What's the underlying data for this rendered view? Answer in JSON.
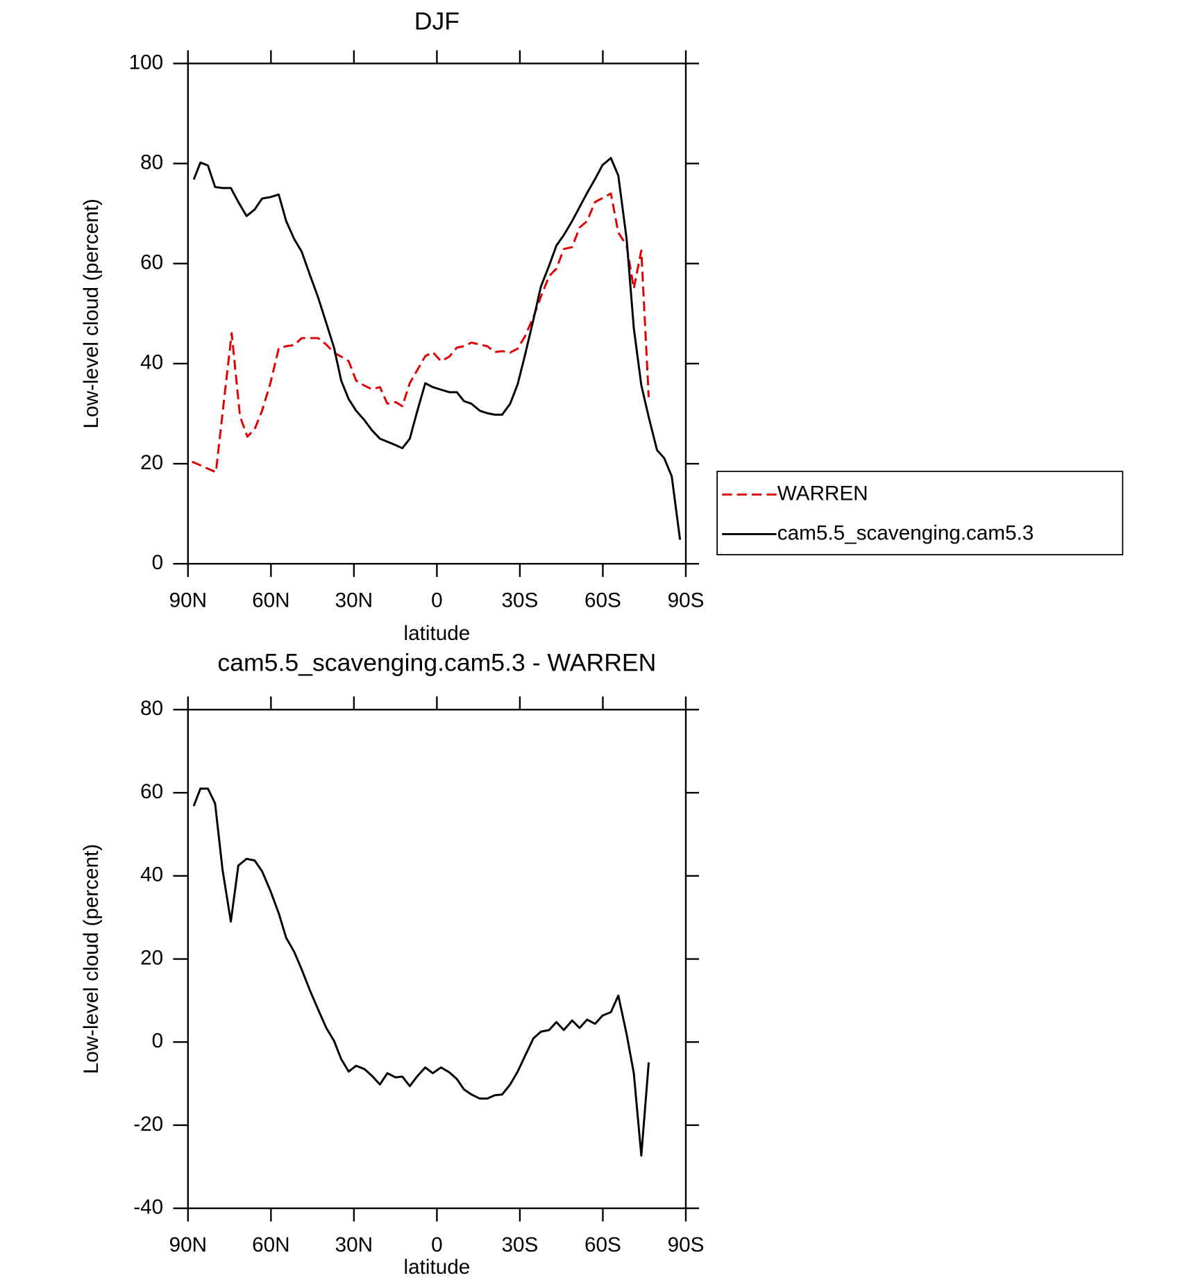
{
  "chart_data": [
    {
      "type": "line",
      "title": "DJF",
      "xlabel": "latitude",
      "ylabel": "Low-level cloud (percent)",
      "xlim": [
        90,
        -90
      ],
      "xticks": [
        {
          "value": 90,
          "label": "90N"
        },
        {
          "value": 60,
          "label": "60N"
        },
        {
          "value": 30,
          "label": "30N"
        },
        0,
        {
          "value": -30,
          "label": "30S"
        },
        {
          "value": -60,
          "label": "60S"
        },
        {
          "value": -90,
          "label": "90S"
        }
      ],
      "ylim": [
        0,
        100
      ],
      "yticks": [
        0,
        20,
        40,
        60,
        80,
        100
      ],
      "legend": "right",
      "series": [
        {
          "name": "WARREN",
          "color": "#e00000",
          "dash": true,
          "x": [
            88.5,
            79.9,
            76.9,
            74.2,
            71.2,
            68.5,
            65.9,
            63.2,
            60.2,
            57.2,
            54.5,
            51.6,
            48.9,
            45.9,
            42.9,
            40.0,
            37.2,
            34.6,
            31.9,
            29.2,
            26.2,
            23.5,
            20.6,
            17.9,
            14.9,
            12.5,
            9.8,
            7.2,
            4.2,
            1.5,
            -1.5,
            -4.5,
            -7.2,
            -9.8,
            -12.5,
            -15.5,
            -18.2,
            -20.9,
            -23.6,
            -26.5,
            -29.2,
            -31.9,
            -34.9,
            -37.6,
            -40.6,
            -43.2,
            -45.9,
            -48.9,
            -51.6,
            -54.3,
            -57.2,
            -59.9,
            -62.9,
            -65.6,
            -68.6,
            -71.2,
            -73.9,
            -76.6
          ],
          "values": [
            20.4,
            18.3,
            33.1,
            46.1,
            29.5,
            25.4,
            26.9,
            30.6,
            36.1,
            43.0,
            43.5,
            43.7,
            45.1,
            45.1,
            45.1,
            43.8,
            42.2,
            41.4,
            40.5,
            36.6,
            35.6,
            34.9,
            35.3,
            32.0,
            32.3,
            31.5,
            36.1,
            38.6,
            41.5,
            42.3,
            40.5,
            41.4,
            43.2,
            43.5,
            44.2,
            43.8,
            43.5,
            42.3,
            42.5,
            42.2,
            43.0,
            45.5,
            49.3,
            53.4,
            57.5,
            59.0,
            62.9,
            63.3,
            67.2,
            68.5,
            72.3,
            73.1,
            74.0,
            66.2,
            63.6,
            55.0,
            62.6,
            33.3
          ]
        },
        {
          "name": "cam5.5_scavenging.cam5.3",
          "color": "#000000",
          "dash": false,
          "x": [
            87.9,
            85.5,
            82.8,
            80.2,
            77.5,
            74.5,
            71.8,
            68.8,
            65.9,
            63.2,
            60.2,
            57.2,
            54.5,
            51.6,
            48.9,
            45.9,
            42.9,
            40.0,
            37.2,
            34.6,
            31.9,
            29.2,
            26.2,
            23.5,
            20.6,
            17.9,
            14.9,
            12.5,
            9.8,
            7.2,
            4.2,
            1.5,
            -1.5,
            -4.5,
            -7.2,
            -9.8,
            -12.5,
            -15.5,
            -18.2,
            -20.9,
            -23.6,
            -26.5,
            -29.2,
            -31.9,
            -34.9,
            -37.6,
            -40.6,
            -43.2,
            -45.9,
            -48.9,
            -51.6,
            -54.3,
            -57.2,
            -59.9,
            -62.9,
            -65.6,
            -68.6,
            -71.2,
            -73.9,
            -76.6,
            -79.6,
            -82.2,
            -84.9,
            -87.9
          ],
          "values": [
            76.8,
            80.2,
            79.6,
            75.3,
            75.1,
            75.1,
            72.3,
            69.5,
            70.8,
            73.0,
            73.3,
            73.8,
            68.5,
            64.9,
            62.4,
            57.7,
            53.2,
            48.1,
            43.2,
            36.6,
            32.9,
            30.6,
            28.7,
            26.7,
            25.0,
            24.4,
            23.7,
            23.1,
            25.0,
            30.3,
            36.1,
            35.3,
            34.8,
            34.3,
            34.3,
            32.5,
            32.0,
            30.6,
            30.1,
            29.8,
            29.8,
            32.0,
            35.9,
            41.8,
            48.8,
            55.4,
            59.6,
            63.6,
            65.7,
            68.5,
            71.3,
            74.1,
            76.9,
            79.7,
            81.1,
            77.6,
            64.9,
            47.1,
            35.7,
            29.3,
            22.7,
            21.1,
            17.5,
            4.8
          ]
        }
      ]
    },
    {
      "type": "line",
      "title": "cam5.5_scavenging.cam5.3 - WARREN",
      "xlabel": "latitude",
      "ylabel": "Low-level cloud (percent)",
      "xlim": [
        90,
        -90
      ],
      "xticks": [
        {
          "value": 90,
          "label": "90N"
        },
        {
          "value": 60,
          "label": "60N"
        },
        {
          "value": 30,
          "label": "30N"
        },
        0,
        {
          "value": -30,
          "label": "30S"
        },
        {
          "value": -60,
          "label": "60S"
        },
        {
          "value": -90,
          "label": "90S"
        }
      ],
      "ylim": [
        -40,
        80
      ],
      "yticks": [
        -40,
        -20,
        0,
        20,
        40,
        60,
        80
      ],
      "color": "#000000",
      "x": [
        87.9,
        85.5,
        82.8,
        80.2,
        77.5,
        74.5,
        71.8,
        68.8,
        65.9,
        63.2,
        60.2,
        57.2,
        54.5,
        51.6,
        48.9,
        45.9,
        42.9,
        40.0,
        37.2,
        34.6,
        31.9,
        29.2,
        26.2,
        23.5,
        20.6,
        17.9,
        14.9,
        12.5,
        9.8,
        7.2,
        4.2,
        1.5,
        -1.5,
        -4.5,
        -7.2,
        -9.8,
        -12.5,
        -15.5,
        -18.2,
        -20.9,
        -23.6,
        -26.5,
        -29.2,
        -31.9,
        -34.9,
        -37.6,
        -40.6,
        -43.2,
        -45.9,
        -48.9,
        -51.6,
        -54.3,
        -57.2,
        -59.9,
        -62.9,
        -65.6,
        -68.6,
        -71.2,
        -73.9,
        -76.6
      ],
      "values": [
        56.8,
        61.0,
        61.0,
        57.4,
        41.5,
        29.0,
        42.5,
        44.1,
        43.7,
        41.1,
        36.4,
        31.0,
        25.1,
        21.7,
        17.5,
        12.4,
        7.8,
        3.4,
        0.3,
        -4.1,
        -7.1,
        -5.7,
        -6.5,
        -8.1,
        -10.2,
        -7.5,
        -8.5,
        -8.3,
        -10.6,
        -8.3,
        -6.1,
        -7.5,
        -6.1,
        -7.3,
        -8.9,
        -11.4,
        -12.6,
        -13.6,
        -13.6,
        -12.8,
        -12.6,
        -10.2,
        -7.1,
        -3.3,
        0.9,
        2.5,
        2.9,
        4.8,
        2.9,
        5.2,
        3.4,
        5.4,
        4.4,
        6.4,
        7.2,
        11.2,
        1.9,
        -7.5,
        -27.3,
        -4.9
      ]
    }
  ]
}
